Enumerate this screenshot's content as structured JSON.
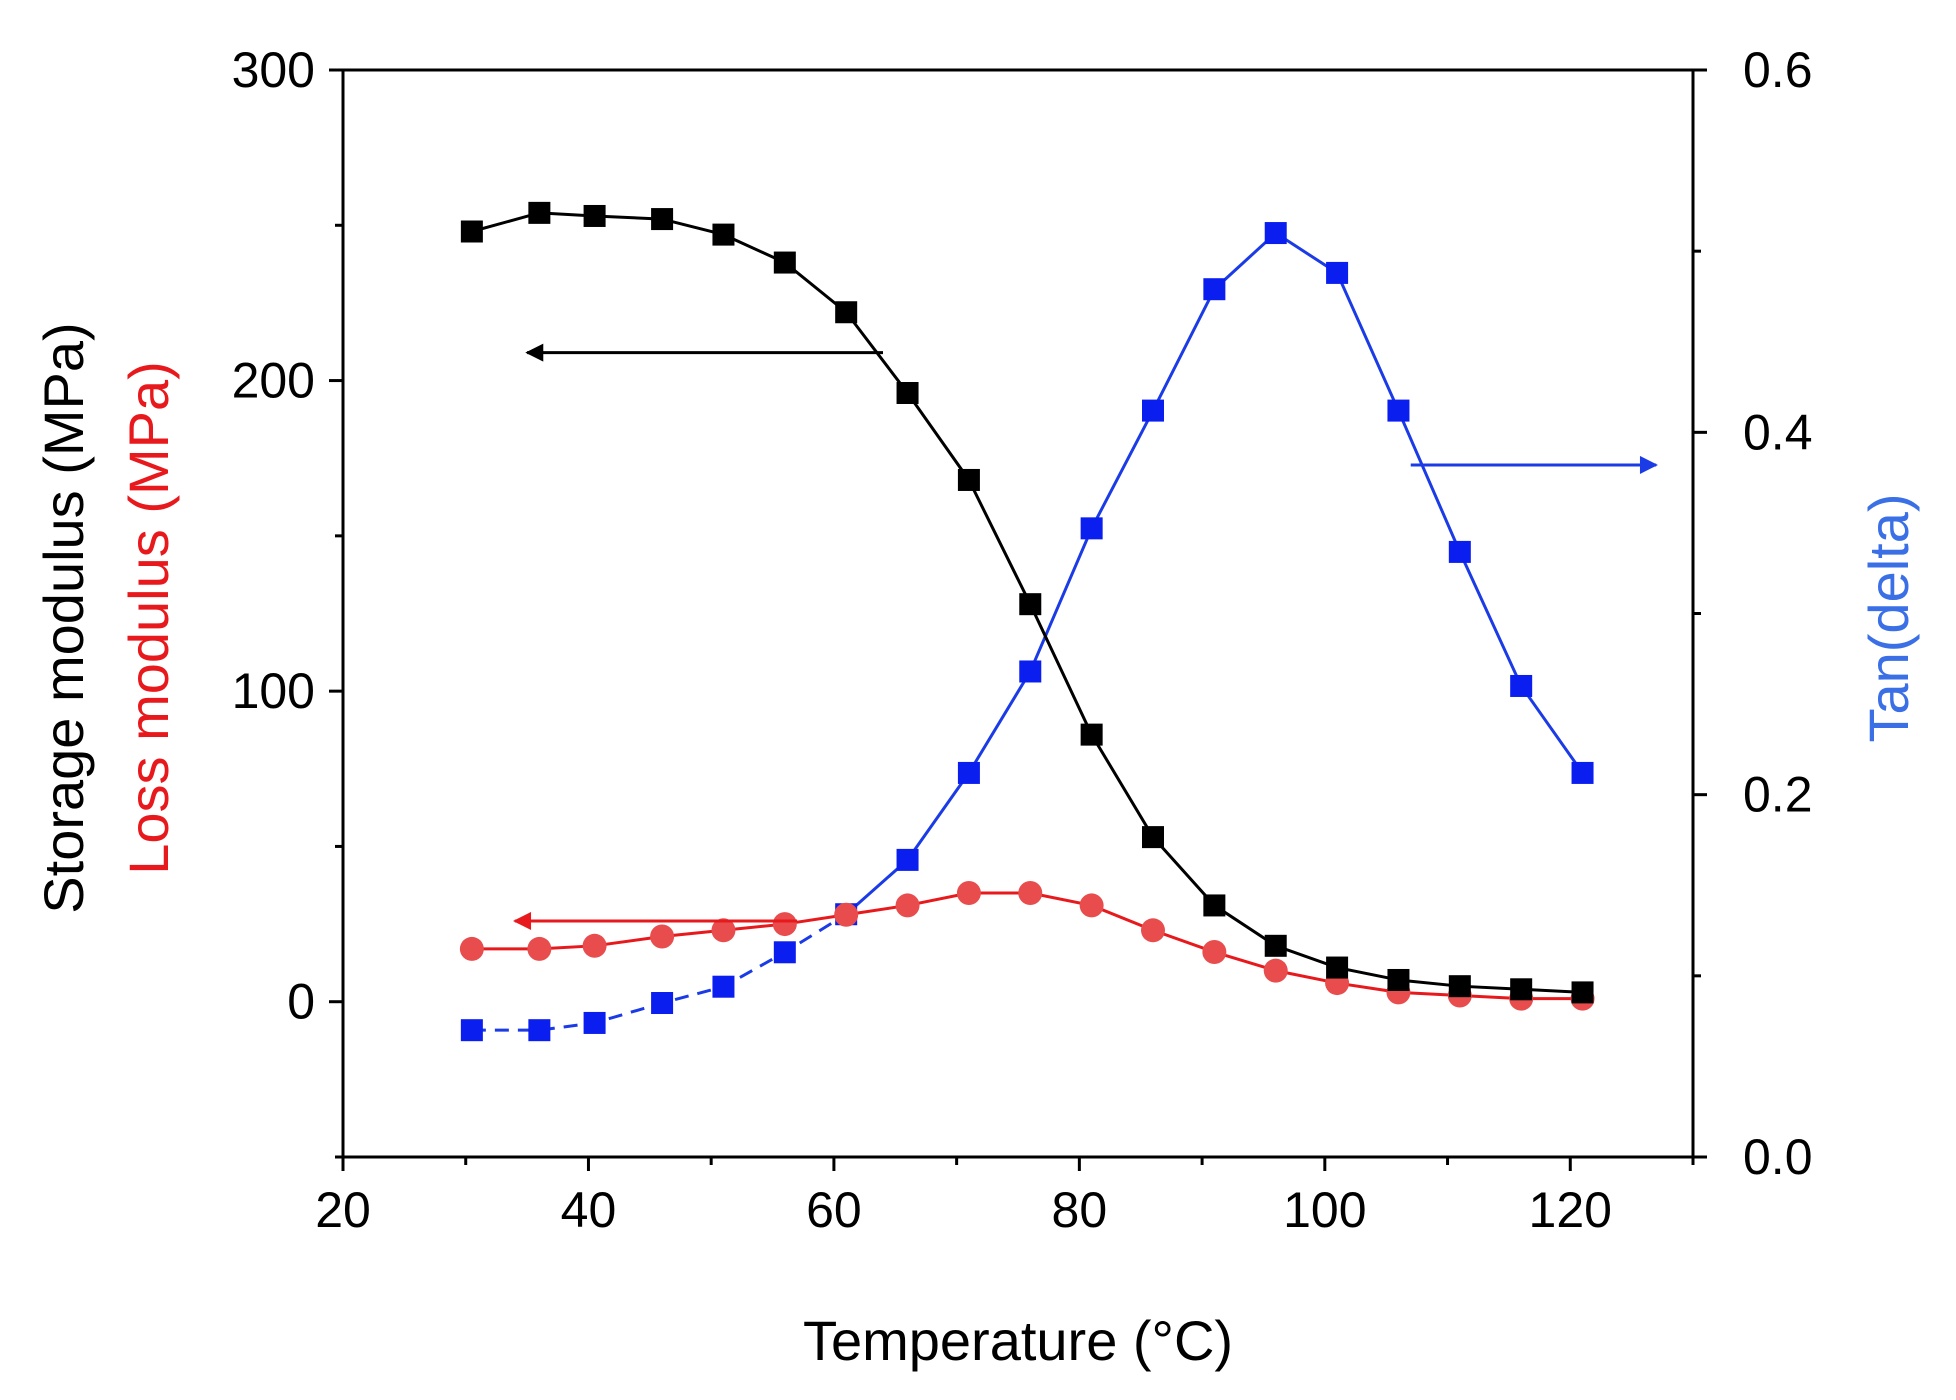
{
  "chart_data": {
    "type": "line",
    "xlabel": "Temperature (°C)",
    "ylabel_left": [
      {
        "text": "Storage modulus (MPa)",
        "color": "#000000"
      },
      {
        "text": "Loss modulus (MPa)",
        "color": "#e8191c"
      }
    ],
    "ylabel_right": {
      "text": "Tan(delta)",
      "color": "#3a6fe6"
    },
    "xlim": [
      20,
      130
    ],
    "ylim_left": [
      -50,
      300
    ],
    "ylim_right": [
      0.0,
      0.6
    ],
    "x_ticks": [
      20,
      40,
      60,
      80,
      100,
      120
    ],
    "x_tick_labels": [
      "20",
      "40",
      "60",
      "80",
      "100",
      "120"
    ],
    "y_left_ticks": [
      0,
      100,
      200,
      300
    ],
    "y_left_tick_labels": [
      "0",
      "100",
      "200",
      "300"
    ],
    "y_right_ticks": [
      0.0,
      0.2,
      0.4,
      0.6
    ],
    "y_right_tick_labels": [
      "0.0",
      "0.2",
      "0.4",
      "0.6"
    ],
    "series": [
      {
        "name": "Storage modulus",
        "axis": "left",
        "marker": "square",
        "color": "#000000",
        "x": [
          30.5,
          36,
          40.5,
          46,
          51,
          56,
          61,
          66,
          71,
          76,
          81,
          86,
          91,
          96,
          101,
          106,
          111,
          116,
          121
        ],
        "values": [
          248,
          254,
          253,
          252,
          247,
          238,
          222,
          196,
          168,
          128,
          86,
          53,
          31,
          18,
          11,
          7,
          5,
          4,
          3
        ]
      },
      {
        "name": "Loss modulus",
        "axis": "left",
        "marker": "circle",
        "color": "#e8191c",
        "marker_color": "#e84c4c",
        "x": [
          30.5,
          36,
          40.5,
          46,
          51,
          56,
          61,
          66,
          71,
          76,
          81,
          86,
          91,
          96,
          101,
          106,
          111,
          116,
          121
        ],
        "values": [
          17,
          17,
          18,
          21,
          23,
          25,
          28,
          31,
          35,
          35,
          31,
          23,
          16,
          10,
          6,
          3,
          2,
          1,
          1
        ]
      },
      {
        "name": "Tan(delta)",
        "axis": "right",
        "marker": "square",
        "color": "#1a3be6",
        "marker_color": "#0a1ef0",
        "x": [
          30.5,
          36,
          40.5,
          46,
          51,
          56,
          61,
          66,
          71,
          76,
          81,
          86,
          91,
          96,
          101,
          106,
          111,
          116,
          121
        ],
        "values": [
          0.07,
          0.07,
          0.074,
          0.085,
          0.094,
          0.113,
          0.134,
          0.164,
          0.212,
          0.268,
          0.347,
          0.412,
          0.479,
          0.51,
          0.488,
          0.412,
          0.334,
          0.26,
          0.212
        ],
        "dashed_until_x": 61
      }
    ],
    "annotations": [
      {
        "type": "arrow",
        "direction": "left",
        "color": "#000000",
        "axis": "left",
        "y": 209,
        "x_from": 64,
        "x_to": 35
      },
      {
        "type": "arrow",
        "direction": "left",
        "color": "#e8191c",
        "axis": "left",
        "y": 26,
        "x_from": 57,
        "x_to": 34
      },
      {
        "type": "arrow",
        "direction": "right",
        "color": "#1a3be6",
        "axis": "right",
        "y": 0.382,
        "x_from": 107,
        "x_to": 127
      }
    ]
  }
}
